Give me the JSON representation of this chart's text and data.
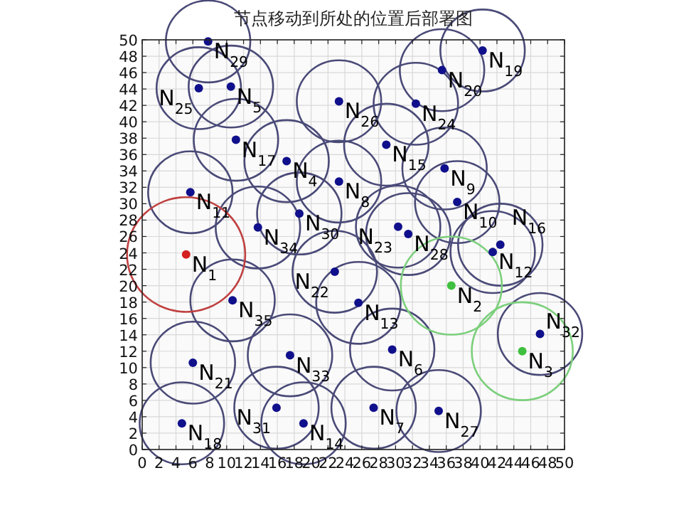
{
  "chart_data": {
    "type": "scatter",
    "title": "节点移动到所处的位置后部署图",
    "xlim": [
      0,
      50
    ],
    "ylim": [
      0,
      50
    ],
    "xticks": [
      0,
      2,
      4,
      6,
      8,
      10,
      12,
      14,
      16,
      18,
      20,
      22,
      24,
      26,
      28,
      30,
      32,
      34,
      36,
      38,
      40,
      42,
      44,
      46,
      48,
      50
    ],
    "yticks": [
      0,
      2,
      4,
      6,
      8,
      10,
      12,
      14,
      16,
      18,
      20,
      22,
      24,
      26,
      28,
      30,
      32,
      34,
      36,
      38,
      40,
      42,
      44,
      46,
      48,
      50
    ],
    "grid": true,
    "marker": "circle",
    "series": [
      {
        "type": "bubble",
        "x": [
          5.2,
          36.6,
          45.0,
          17.1,
          10.5,
          29.6,
          27.4,
          23.3,
          35.8,
          37.3,
          5.7,
          41.5,
          25.6,
          19.1,
          28.9,
          42.4,
          11.1,
          4.7,
          40.3,
          35.5,
          6.0,
          22.8,
          30.3,
          32.4,
          6.7,
          23.3,
          35.1,
          31.5,
          7.8,
          18.6,
          15.9,
          47.1,
          17.5,
          13.7,
          10.7
        ],
        "values": [
          23.8,
          20.0,
          12.0,
          35.2,
          44.3,
          12.2,
          5.1,
          32.7,
          34.3,
          30.2,
          31.4,
          24.1,
          17.9,
          3.2,
          37.2,
          25.0,
          37.8,
          3.2,
          48.7,
          46.3,
          10.6,
          21.7,
          27.2,
          42.2,
          44.1,
          42.5,
          4.7,
          26.3,
          49.8,
          28.8,
          5.1,
          14.1,
          11.5,
          27.1,
          18.2
        ],
        "sizes": [
          1,
          0.73,
          0.73,
          0.51,
          0.51,
          0.51,
          0.51,
          0.51,
          0.51,
          0.51,
          0.51,
          0.51,
          0.51,
          0.51,
          0.51,
          0.51,
          0.51,
          0.51,
          0.51,
          0.51,
          0.51,
          0.51,
          0.51,
          0.51,
          0.51,
          0.51,
          0.51,
          0.51,
          0.51,
          0.51,
          0.51,
          0.51,
          0.51,
          0.51,
          0.51
        ],
        "colors": [
          "#c04040",
          "#7ccf7c",
          "#7ccf7c",
          "#4a4a78",
          "#4a4a78",
          "#4a4a78",
          "#4a4a78",
          "#4a4a78",
          "#4a4a78",
          "#4a4a78",
          "#4a4a78",
          "#4a4a78",
          "#4a4a78",
          "#4a4a78",
          "#4a4a78",
          "#4a4a78",
          "#4a4a78",
          "#4a4a78",
          "#4a4a78",
          "#4a4a78",
          "#4a4a78",
          "#4a4a78",
          "#4a4a78",
          "#4a4a78",
          "#4a4a78",
          "#4a4a78",
          "#4a4a78",
          "#4a4a78",
          "#4a4a78",
          "#4a4a78",
          "#4a4a78",
          "#4a4a78",
          "#4a4a78",
          "#4a4a78",
          "#4a4a78"
        ]
      },
      {
        "type": "scatter",
        "x": [
          5.2,
          36.6,
          45.0,
          17.1,
          10.5,
          29.6,
          27.4,
          23.3,
          35.8,
          37.3,
          5.7,
          41.5,
          25.6,
          19.1,
          28.9,
          42.4,
          11.1,
          4.7,
          40.3,
          35.5,
          6.0,
          22.8,
          30.3,
          32.4,
          6.7,
          23.3,
          35.1,
          31.5,
          7.8,
          18.6,
          15.9,
          47.1,
          17.5,
          13.7,
          10.7
        ],
        "values": [
          23.8,
          20.0,
          12.0,
          35.2,
          44.3,
          12.2,
          5.1,
          32.7,
          34.3,
          30.2,
          31.4,
          24.1,
          17.9,
          3.2,
          37.2,
          25.0,
          37.8,
          3.2,
          48.7,
          46.3,
          10.6,
          21.7,
          27.2,
          42.2,
          44.1,
          42.5,
          4.7,
          26.3,
          49.8,
          28.8,
          5.1,
          14.1,
          11.5,
          27.1,
          18.2
        ],
        "colors": [
          "#d42020",
          "#40c040",
          "#40c040",
          "#10108c",
          "#10108c",
          "#10108c",
          "#10108c",
          "#10108c",
          "#10108c",
          "#10108c",
          "#10108c",
          "#10108c",
          "#10108c",
          "#10108c",
          "#10108c",
          "#10108c",
          "#10108c",
          "#10108c",
          "#10108c",
          "#10108c",
          "#10108c",
          "#10108c",
          "#10108c",
          "#10108c",
          "#10108c",
          "#10108c",
          "#10108c",
          "#10108c",
          "#10108c",
          "#10108c",
          "#10108c",
          "#10108c",
          "#10108c",
          "#10108c",
          "#10108c"
        ]
      }
    ],
    "annotations": [
      {
        "text": "N$_{1}$",
        "x": 5.2,
        "y": 23.8
      },
      {
        "text": "N$_{2}$",
        "x": 36.6,
        "y": 20.0
      },
      {
        "text": "N$_{3}$",
        "x": 45.0,
        "y": 12.0
      },
      {
        "text": "N$_{4}$",
        "x": 17.1,
        "y": 35.2
      },
      {
        "text": "N$_{5}$",
        "x": 10.5,
        "y": 44.3
      },
      {
        "text": "N$_{6}$",
        "x": 29.6,
        "y": 12.2
      },
      {
        "text": "N$_{7}$",
        "x": 27.4,
        "y": 5.1
      },
      {
        "text": "N$_{8}$",
        "x": 23.3,
        "y": 32.7
      },
      {
        "text": "N$_{9}$",
        "x": 35.8,
        "y": 34.3
      },
      {
        "text": "N$_{10}$",
        "x": 37.3,
        "y": 30.2
      },
      {
        "text": "N$_{11}$",
        "x": 5.7,
        "y": 31.4
      },
      {
        "text": "N$_{12}$",
        "x": 41.5,
        "y": 24.1
      },
      {
        "text": "N$_{13}$",
        "x": 25.6,
        "y": 17.9
      },
      {
        "text": "N$_{14}$",
        "x": 19.1,
        "y": 3.2
      },
      {
        "text": "N$_{15}$",
        "x": 28.9,
        "y": 37.2
      },
      {
        "text": "N$_{16}$",
        "x": 42.4,
        "y": 25.0
      },
      {
        "text": "N$_{17}$",
        "x": 11.1,
        "y": 37.8
      },
      {
        "text": "N$_{18}$",
        "x": 4.7,
        "y": 3.2
      },
      {
        "text": "N$_{19}$",
        "x": 40.3,
        "y": 48.7
      },
      {
        "text": "N$_{20}$",
        "x": 35.5,
        "y": 46.3
      },
      {
        "text": "N$_{21}$",
        "x": 6.0,
        "y": 10.6
      },
      {
        "text": "N$_{22}$",
        "x": 22.8,
        "y": 21.7
      },
      {
        "text": "N$_{23}$",
        "x": 30.3,
        "y": 27.2
      },
      {
        "text": "N$_{24}$",
        "x": 32.4,
        "y": 42.2
      },
      {
        "text": "N$_{25}$",
        "x": 6.7,
        "y": 44.1
      },
      {
        "text": "N$_{26}$",
        "x": 23.3,
        "y": 42.5
      },
      {
        "text": "N$_{27}$",
        "x": 35.1,
        "y": 4.7
      },
      {
        "text": "N$_{28}$",
        "x": 31.5,
        "y": 26.3
      },
      {
        "text": "N$_{29}$",
        "x": 7.8,
        "y": 49.8
      },
      {
        "text": "N$_{30}$",
        "x": 18.6,
        "y": 28.8
      },
      {
        "text": "N$_{31}$",
        "x": 15.9,
        "y": 5.1
      },
      {
        "text": "N$_{32}$",
        "x": 47.1,
        "y": 14.1
      },
      {
        "text": "N$_{33}$",
        "x": 17.5,
        "y": 11.5
      },
      {
        "text": "N$_{34}$",
        "x": 13.7,
        "y": 27.1
      },
      {
        "text": "N$_{35}$",
        "x": 10.7,
        "y": 18.2
      }
    ]
  }
}
